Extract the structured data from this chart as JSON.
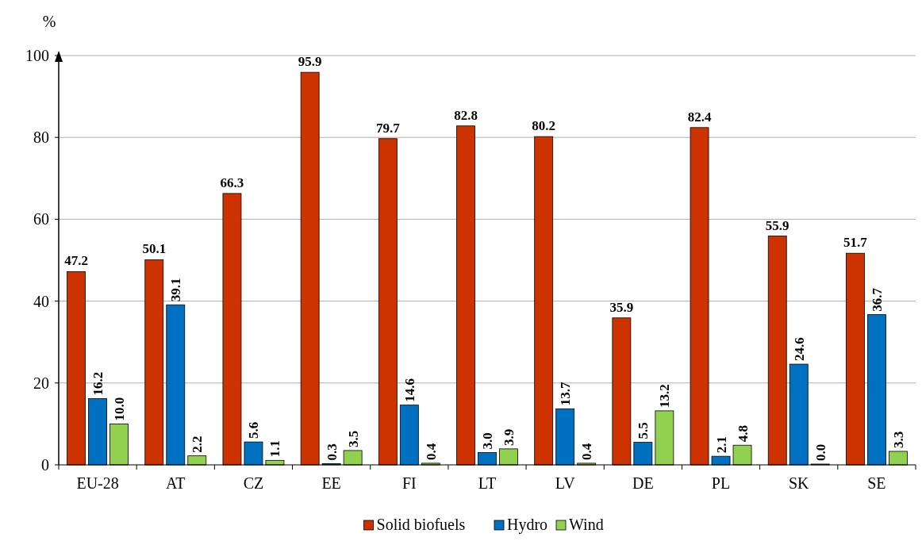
{
  "chart_data": {
    "type": "bar",
    "ylabel": "%",
    "categories": [
      "EU-28",
      "AT",
      "CZ",
      "EE",
      "FI",
      "LT",
      "LV",
      "DE",
      "PL",
      "SK",
      "SE"
    ],
    "series": [
      {
        "name": "Solid biofuels",
        "color": "#cc3300",
        "values": [
          47.2,
          50.1,
          66.3,
          95.9,
          79.7,
          82.8,
          80.2,
          35.9,
          82.4,
          55.9,
          51.7
        ],
        "value_labels": [
          "47.2",
          "50.1",
          "66.3",
          "95.9",
          "79.7",
          "82.8",
          "80.2",
          "35.9",
          "82.4",
          "55.9",
          "51.7"
        ]
      },
      {
        "name": "Hydro",
        "color": "#0070c0",
        "values": [
          16.2,
          39.1,
          5.6,
          0.3,
          14.6,
          3.0,
          13.7,
          5.5,
          2.1,
          24.6,
          36.7
        ],
        "value_labels": [
          "16.2",
          "39.1",
          "5.6",
          "0.3",
          "14.6",
          "3.0",
          "13.7",
          "5.5",
          "2.1",
          "24.6",
          "36.7"
        ]
      },
      {
        "name": "Wind",
        "color": "#92d050",
        "values": [
          10.0,
          2.2,
          1.1,
          3.5,
          0.4,
          3.9,
          0.4,
          13.2,
          4.8,
          0.0,
          3.3
        ],
        "value_labels": [
          "10.0",
          "2.2",
          "1.1",
          "3.5",
          "0.4",
          "3.9",
          "0.4",
          "13.2",
          "4.8",
          "0.0",
          "3.3"
        ]
      }
    ],
    "ylim": [
      0,
      100
    ],
    "yticks": [
      0,
      20,
      40,
      60,
      80,
      100
    ],
    "grid": "y",
    "legend": "bottom"
  }
}
